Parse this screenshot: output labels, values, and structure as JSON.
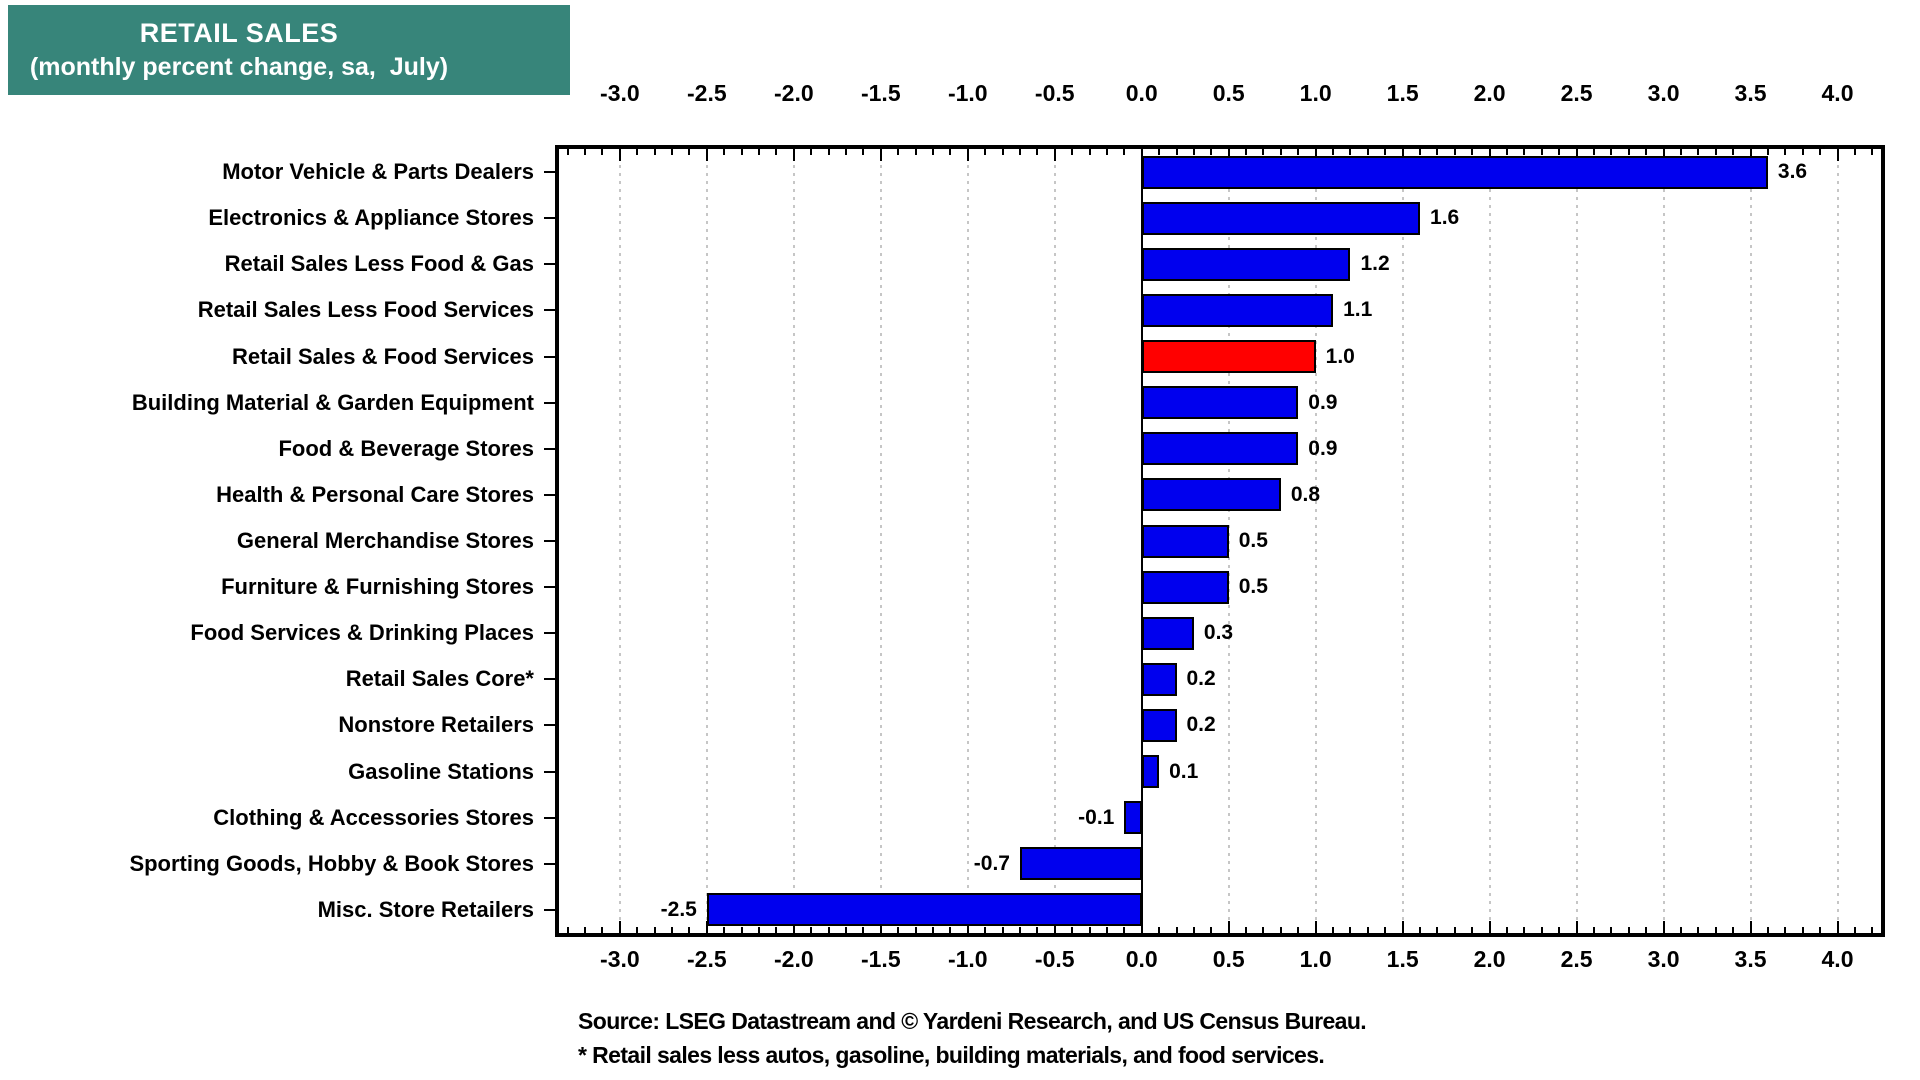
{
  "title": {
    "line1": "RETAIL SALES",
    "line2": "(monthly percent change, sa,  July)"
  },
  "source": {
    "line1": "Source: LSEG Datastream and © Yardeni Research, and US Census Bureau.",
    "line2": "* Retail sales less autos, gasoline, building materials, and food services."
  },
  "colors": {
    "title_bg": "#37857A",
    "title_text": "#FFFFFF",
    "bar": "#0000EE",
    "highlight_bar": "#FF0000",
    "gridline": "#C6C6C6",
    "axis": "#000000",
    "text": "#000000"
  },
  "chart_data": {
    "type": "bar",
    "orientation": "horizontal",
    "title": "RETAIL SALES (monthly percent change, sa, July)",
    "categories": [
      "Motor Vehicle & Parts Dealers",
      "Electronics & Appliance Stores",
      "Retail Sales Less Food & Gas",
      "Retail Sales Less Food Services",
      "Retail Sales & Food Services",
      "Building Material & Garden Equipment",
      "Food & Beverage Stores",
      "Health & Personal Care Stores",
      "General Merchandise Stores",
      "Furniture & Furnishing Stores",
      "Food Services & Drinking Places",
      "Retail Sales Core*",
      "Nonstore Retailers",
      "Gasoline Stations",
      "Clothing & Accessories Stores",
      "Sporting Goods, Hobby & Book Stores",
      "Misc. Store Retailers"
    ],
    "values": [
      3.6,
      1.6,
      1.2,
      1.1,
      1.0,
      0.9,
      0.9,
      0.8,
      0.5,
      0.5,
      0.3,
      0.2,
      0.2,
      0.1,
      -0.1,
      -0.7,
      -2.5
    ],
    "value_labels": [
      "3.6",
      "1.6",
      "1.2",
      "1.1",
      "1.0",
      "0.9",
      "0.9",
      "0.8",
      "0.5",
      "0.5",
      "0.3",
      "0.2",
      "0.2",
      "0.1",
      "-0.1",
      "-0.7",
      "-2.5"
    ],
    "highlight_index": 4,
    "xlim": [
      -3.35,
      4.25
    ],
    "x_tick_values": [
      -3.0,
      -2.5,
      -2.0,
      -1.5,
      -1.0,
      -0.5,
      0.0,
      0.5,
      1.0,
      1.5,
      2.0,
      2.5,
      3.0,
      3.5,
      4.0
    ],
    "x_tick_labels": [
      "-3.0",
      "-2.5",
      "-2.0",
      "-1.5",
      "-1.0",
      "-0.5",
      "0.0",
      "0.5",
      "1.0",
      "1.5",
      "2.0",
      "2.5",
      "3.0",
      "3.5",
      "4.0"
    ],
    "minor_tick_step": 0.1,
    "grid": "vertical dotted at major ticks, solid line at zero",
    "legend": "none",
    "xlabel": "",
    "ylabel": ""
  }
}
